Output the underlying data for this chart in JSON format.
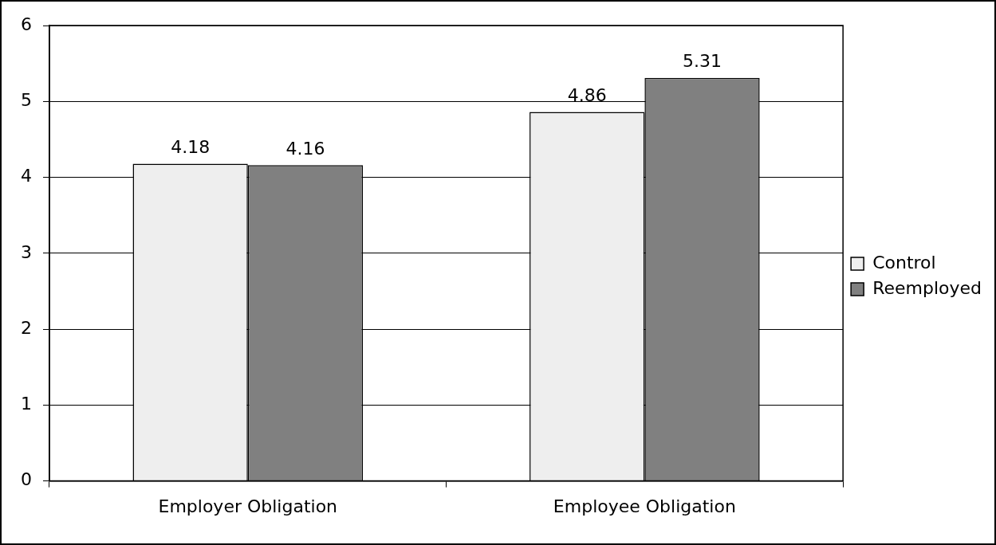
{
  "chart_data": {
    "type": "bar",
    "categories": [
      "Employer Obligation",
      "Employee Obligation"
    ],
    "series": [
      {
        "name": "Control",
        "color": "#eeeeee",
        "values": [
          4.18,
          4.86
        ]
      },
      {
        "name": "Reemployed",
        "color": "#808080",
        "values": [
          4.16,
          5.31
        ]
      }
    ],
    "ylim": [
      0,
      6
    ],
    "yticks": [
      0,
      1,
      2,
      3,
      4,
      5,
      6
    ],
    "grid": "y",
    "legend": "right",
    "data_labels": true
  }
}
